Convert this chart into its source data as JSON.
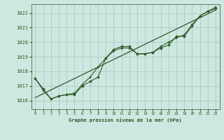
{
  "background_color": "#cce8e0",
  "grid_color": "#aaccC4",
  "line_color": "#2d5a27",
  "marker_color": "#2d5a27",
  "xlabel": "Graphe pression niveau de la mer (hPa)",
  "xlim": [
    -0.5,
    23.5
  ],
  "ylim": [
    1015.4,
    1022.6
  ],
  "yticks": [
    1016,
    1017,
    1018,
    1019,
    1020,
    1021,
    1022
  ],
  "xticks": [
    0,
    1,
    2,
    3,
    4,
    5,
    6,
    7,
    8,
    9,
    10,
    11,
    12,
    13,
    14,
    15,
    16,
    17,
    18,
    19,
    20,
    21,
    22,
    23
  ],
  "series1": [
    1017.5,
    1016.8,
    1016.1,
    1016.3,
    1016.4,
    1016.4,
    1017.0,
    1017.3,
    1017.6,
    1018.9,
    1019.5,
    1019.7,
    1019.7,
    1019.2,
    1019.2,
    1019.3,
    1019.6,
    1019.8,
    1020.4,
    1020.4,
    1021.1,
    1021.8,
    1022.1,
    1022.3
  ],
  "series2": [
    1017.5,
    1016.7,
    1016.1,
    1016.3,
    1016.4,
    1016.5,
    1017.1,
    1017.6,
    1018.3,
    1018.9,
    1019.4,
    1019.6,
    1019.6,
    1019.2,
    1019.2,
    1019.3,
    1019.7,
    1020.0,
    1020.3,
    1020.5,
    1021.2,
    1021.8,
    1022.1,
    1022.4
  ],
  "trend_line_x": [
    0,
    23
  ],
  "trend_line_y": [
    1016.2,
    1022.2
  ]
}
